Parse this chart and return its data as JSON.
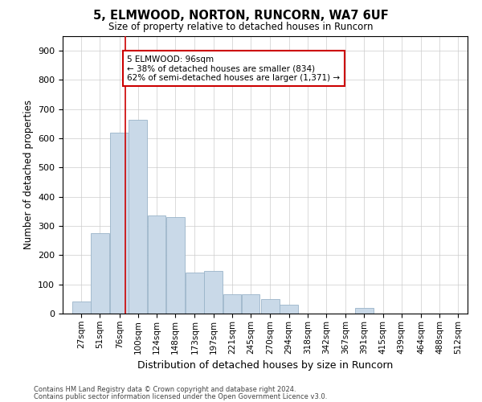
{
  "title": "5, ELMWOOD, NORTON, RUNCORN, WA7 6UF",
  "subtitle": "Size of property relative to detached houses in Runcorn",
  "xlabel": "Distribution of detached houses by size in Runcorn",
  "ylabel": "Number of detached properties",
  "footnote1": "Contains HM Land Registry data © Crown copyright and database right 2024.",
  "footnote2": "Contains public sector information licensed under the Open Government Licence v3.0.",
  "annotation_line1": "5 ELMWOOD: 96sqm",
  "annotation_line2": "← 38% of detached houses are smaller (834)",
  "annotation_line3": "62% of semi-detached houses are larger (1,371) →",
  "bar_color": "#c9d9e8",
  "bar_edge_color": "#9ab4c8",
  "vline_color": "#cc0000",
  "background_color": "#ffffff",
  "grid_color": "#cccccc",
  "categories": [
    "27sqm",
    "51sqm",
    "76sqm",
    "100sqm",
    "124sqm",
    "148sqm",
    "173sqm",
    "197sqm",
    "221sqm",
    "245sqm",
    "270sqm",
    "294sqm",
    "318sqm",
    "342sqm",
    "367sqm",
    "391sqm",
    "415sqm",
    "439sqm",
    "464sqm",
    "488sqm",
    "512sqm"
  ],
  "bin_left": [
    27,
    51,
    76,
    100,
    124,
    148,
    173,
    197,
    221,
    245,
    270,
    294,
    318,
    342,
    367,
    391,
    415,
    439,
    464,
    488,
    512
  ],
  "bin_width": 24,
  "values": [
    42,
    275,
    620,
    665,
    335,
    330,
    140,
    145,
    65,
    65,
    50,
    30,
    0,
    0,
    0,
    20,
    0,
    0,
    0,
    0,
    0
  ],
  "ylim": [
    0,
    950
  ],
  "yticks": [
    0,
    100,
    200,
    300,
    400,
    500,
    600,
    700,
    800,
    900
  ],
  "vline_x": 96,
  "xlim_left": 15,
  "xlim_right": 536
}
